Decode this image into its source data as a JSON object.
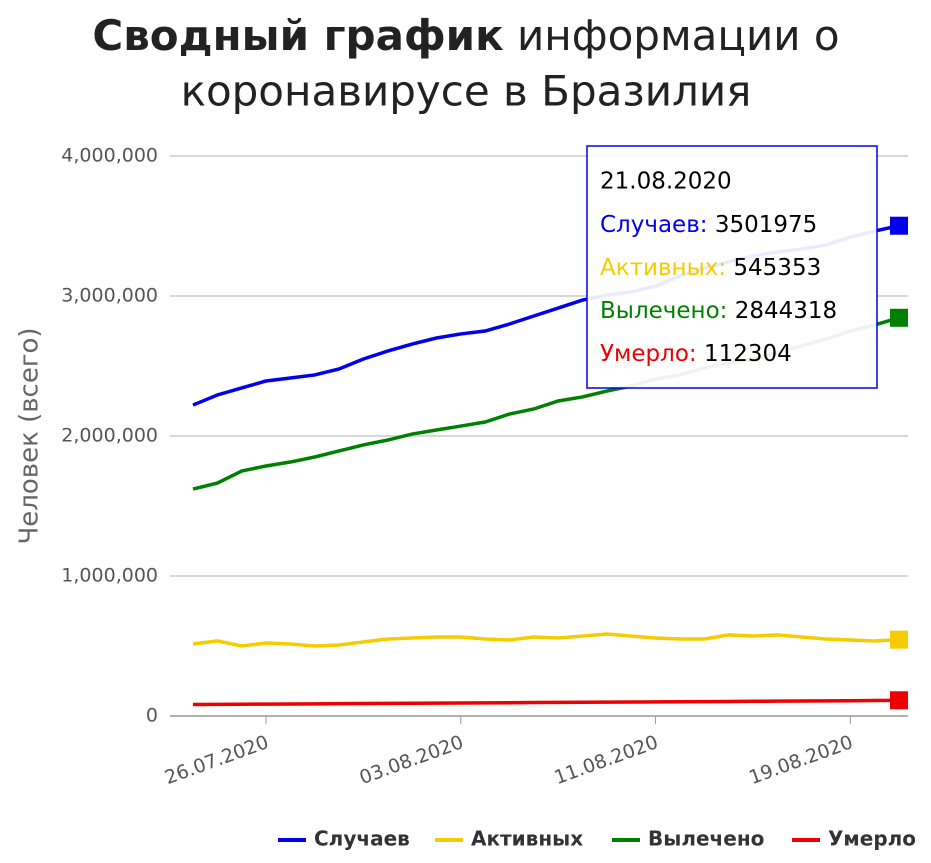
{
  "chart_data": {
    "type": "line",
    "title_bold": "Сводный график",
    "title_rest": "информации о",
    "title_line2": "коронавирусе в Бразилия",
    "y_label": "Человек (всего)",
    "x": [
      "23.07.2020",
      "24.07.2020",
      "25.07.2020",
      "26.07.2020",
      "27.07.2020",
      "28.07.2020",
      "29.07.2020",
      "30.07.2020",
      "31.07.2020",
      "01.08.2020",
      "02.08.2020",
      "03.08.2020",
      "04.08.2020",
      "05.08.2020",
      "06.08.2020",
      "07.08.2020",
      "08.08.2020",
      "09.08.2020",
      "10.08.2020",
      "11.08.2020",
      "12.08.2020",
      "13.08.2020",
      "14.08.2020",
      "15.08.2020",
      "16.08.2020",
      "17.08.2020",
      "18.08.2020",
      "19.08.2020",
      "20.08.2020",
      "21.08.2020"
    ],
    "xticks": [
      "26.07.2020",
      "03.08.2020",
      "11.08.2020",
      "19.08.2020"
    ],
    "ylim": [
      0,
      4000000
    ],
    "yticks": [
      {
        "value": 0,
        "label": "0"
      },
      {
        "value": 1000000,
        "label": "1,000,000"
      },
      {
        "value": 2000000,
        "label": "2,000,000"
      },
      {
        "value": 3000000,
        "label": "3,000,000"
      },
      {
        "value": 4000000,
        "label": "4,000,000"
      }
    ],
    "grid": true,
    "series": [
      {
        "name": "Случаев",
        "color": "#0000ee",
        "values": [
          2221000,
          2293000,
          2343000,
          2393000,
          2414000,
          2436000,
          2479000,
          2550000,
          2607000,
          2657000,
          2700000,
          2729000,
          2750000,
          2800000,
          2857000,
          2914000,
          2971000,
          3007000,
          3029000,
          3071000,
          3143000,
          3200000,
          3243000,
          3286000,
          3314000,
          3336000,
          3364000,
          3421000,
          3464000,
          3501975
        ]
      },
      {
        "name": "Активных",
        "color": "#f5cc00",
        "values": [
          514000,
          536000,
          500000,
          521000,
          514000,
          500000,
          507000,
          529000,
          550000,
          557000,
          564000,
          564000,
          550000,
          543000,
          564000,
          557000,
          571000,
          586000,
          571000,
          557000,
          550000,
          550000,
          579000,
          571000,
          579000,
          564000,
          550000,
          543000,
          536000,
          545353
        ]
      },
      {
        "name": "Вылечено",
        "color": "#008000",
        "values": [
          1621000,
          1664000,
          1750000,
          1786000,
          1814000,
          1850000,
          1893000,
          1936000,
          1971000,
          2014000,
          2043000,
          2071000,
          2100000,
          2157000,
          2193000,
          2250000,
          2279000,
          2321000,
          2357000,
          2407000,
          2436000,
          2486000,
          2521000,
          2550000,
          2593000,
          2643000,
          2693000,
          2750000,
          2793000,
          2844318
        ]
      },
      {
        "name": "Умерло",
        "color": "#ee0000",
        "values": [
          82000,
          83000,
          84000,
          85000,
          86000,
          87000,
          88000,
          89000,
          90000,
          91000,
          92000,
          93000,
          94000,
          95000,
          96000,
          97000,
          98000,
          99000,
          100000,
          101000,
          102000,
          103000,
          104000,
          105000,
          106000,
          107000,
          108000,
          109000,
          110500,
          112304
        ]
      }
    ],
    "legend": "bottom",
    "tooltip": {
      "date": "21.08.2020",
      "labels": [
        "Случаев:",
        "Активных:",
        "Вылечено:",
        "Умерло:"
      ]
    }
  }
}
